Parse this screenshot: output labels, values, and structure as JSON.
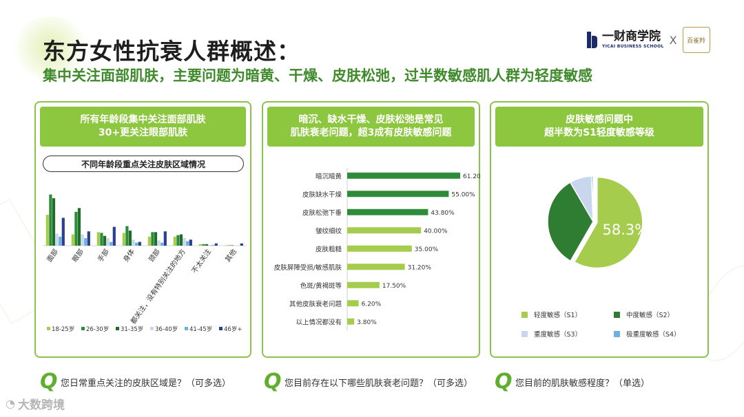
{
  "title": "东方女性抗衰人群概述：",
  "subtitle": "集中关注面部肌肤，主要问题为暗黄、干燥、皮肤松弛，过半数敏感肌人群为轻度敏感",
  "logo": {
    "cn": "一财商学院",
    "en": "YICAI BUSINESS SCHOOL",
    "separator": "X",
    "seal_text": "百雀羚"
  },
  "watermark": "大数跨境",
  "colors": {
    "accent_green": "#8dc63f",
    "dark_green": "#2e8b3a",
    "mid_green": "#1f6e2a",
    "light_green": "#a6cc4e",
    "subtitle_green": "#3f8a2b",
    "navy": "#2b3f8f"
  },
  "panels": [
    {
      "header": "所有年龄段集中关注面部肌肤\n30+更关注眼部肌肤",
      "subheader": "不同年龄段重点关注皮肤区域情况"
    },
    {
      "header": "暗沉、缺水干燥、皮肤松弛是常见\n肌肤衰老问题，超3成有皮肤敏感问题"
    },
    {
      "header": "皮肤敏感问题中\n超半数为S1轻度敏感等级"
    }
  ],
  "questions": [
    {
      "icon": "q-icon",
      "text": "您日常重点关注的皮肤区域是？（可多选）"
    },
    {
      "icon": "q-icon",
      "text": "您目前存在以下哪些肌肤衰老问题？（可多选）"
    },
    {
      "icon": "q-icon",
      "text": "您目前的肌肤敏感程度？（单选）"
    }
  ],
  "chart_data": [
    {
      "type": "bar",
      "title": "不同年龄段重点关注皮肤区域情况",
      "categories": [
        "面部",
        "眼部",
        "手部",
        "身体",
        "颈部",
        "都关注，没有特别关注的地方",
        "不太关注",
        "其他"
      ],
      "series": [
        {
          "name": "18-25岁",
          "color": "#a6cc4e",
          "values": [
            41,
            15,
            18,
            17,
            12,
            12,
            2,
            0.5
          ]
        },
        {
          "name": "26-30岁",
          "color": "#2e8b3a",
          "values": [
            68,
            45,
            17,
            26,
            18,
            14,
            2,
            0.5
          ]
        },
        {
          "name": "31-35岁",
          "color": "#1f6e2a",
          "values": [
            63,
            50,
            13,
            20,
            18,
            15,
            2,
            0.5
          ]
        },
        {
          "name": "36-40岁",
          "color": "#c9d7ee",
          "values": [
            16,
            15,
            10,
            8,
            7,
            10,
            1,
            0.5
          ]
        },
        {
          "name": "41-45岁",
          "color": "#6eb0e0",
          "values": [
            12,
            10,
            5,
            4,
            4,
            6,
            1,
            0
          ]
        },
        {
          "name": "46岁+",
          "color": "#2b3f8f",
          "values": [
            37,
            19,
            25,
            5,
            19,
            8,
            3,
            3
          ]
        }
      ],
      "ylim": [
        0,
        75
      ],
      "legend": "bottom"
    },
    {
      "type": "bar",
      "orientation": "horizontal",
      "categories": [
        "暗沉暗黄",
        "皮肤缺水干燥",
        "皮肤松弛下垂",
        "皱纹细纹",
        "皮肤粗糙",
        "皮肤屏障受损/敏感肌肤",
        "色斑/黄褐斑等",
        "其他皮肤衰老问题",
        "以上情况都没有"
      ],
      "values": [
        61.2,
        55.0,
        43.8,
        40.0,
        35.0,
        31.2,
        17.5,
        6.2,
        3.8
      ],
      "value_labels": [
        "61.20%",
        "55.00%",
        "43.80%",
        "40.00%",
        "35.00%",
        "31.20%",
        "17.50%",
        "6.20%",
        "3.80%"
      ],
      "colors": [
        "#2e8b3a",
        "#2e8b3a",
        "#2e8b3a",
        "#a6cc4e",
        "#a6cc4e",
        "#a6cc4e",
        "#a6cc4e",
        "#a6cc4e",
        "#a6cc4e"
      ],
      "xlim": [
        0,
        70
      ]
    },
    {
      "type": "pie",
      "labels": [
        "轻度敏感（S1）",
        "中度敏感（S2）",
        "重度敏感（S3）",
        "极重度敏感（S4）"
      ],
      "values": [
        58.3,
        33.3,
        7.8,
        0.6
      ],
      "colors": [
        "#a6cc4e",
        "#2e7d32",
        "#c9d7ee",
        "#6eb0e0"
      ],
      "data_labels": [
        "58.3%",
        "",
        "",
        ""
      ],
      "legend": "bottom"
    }
  ]
}
